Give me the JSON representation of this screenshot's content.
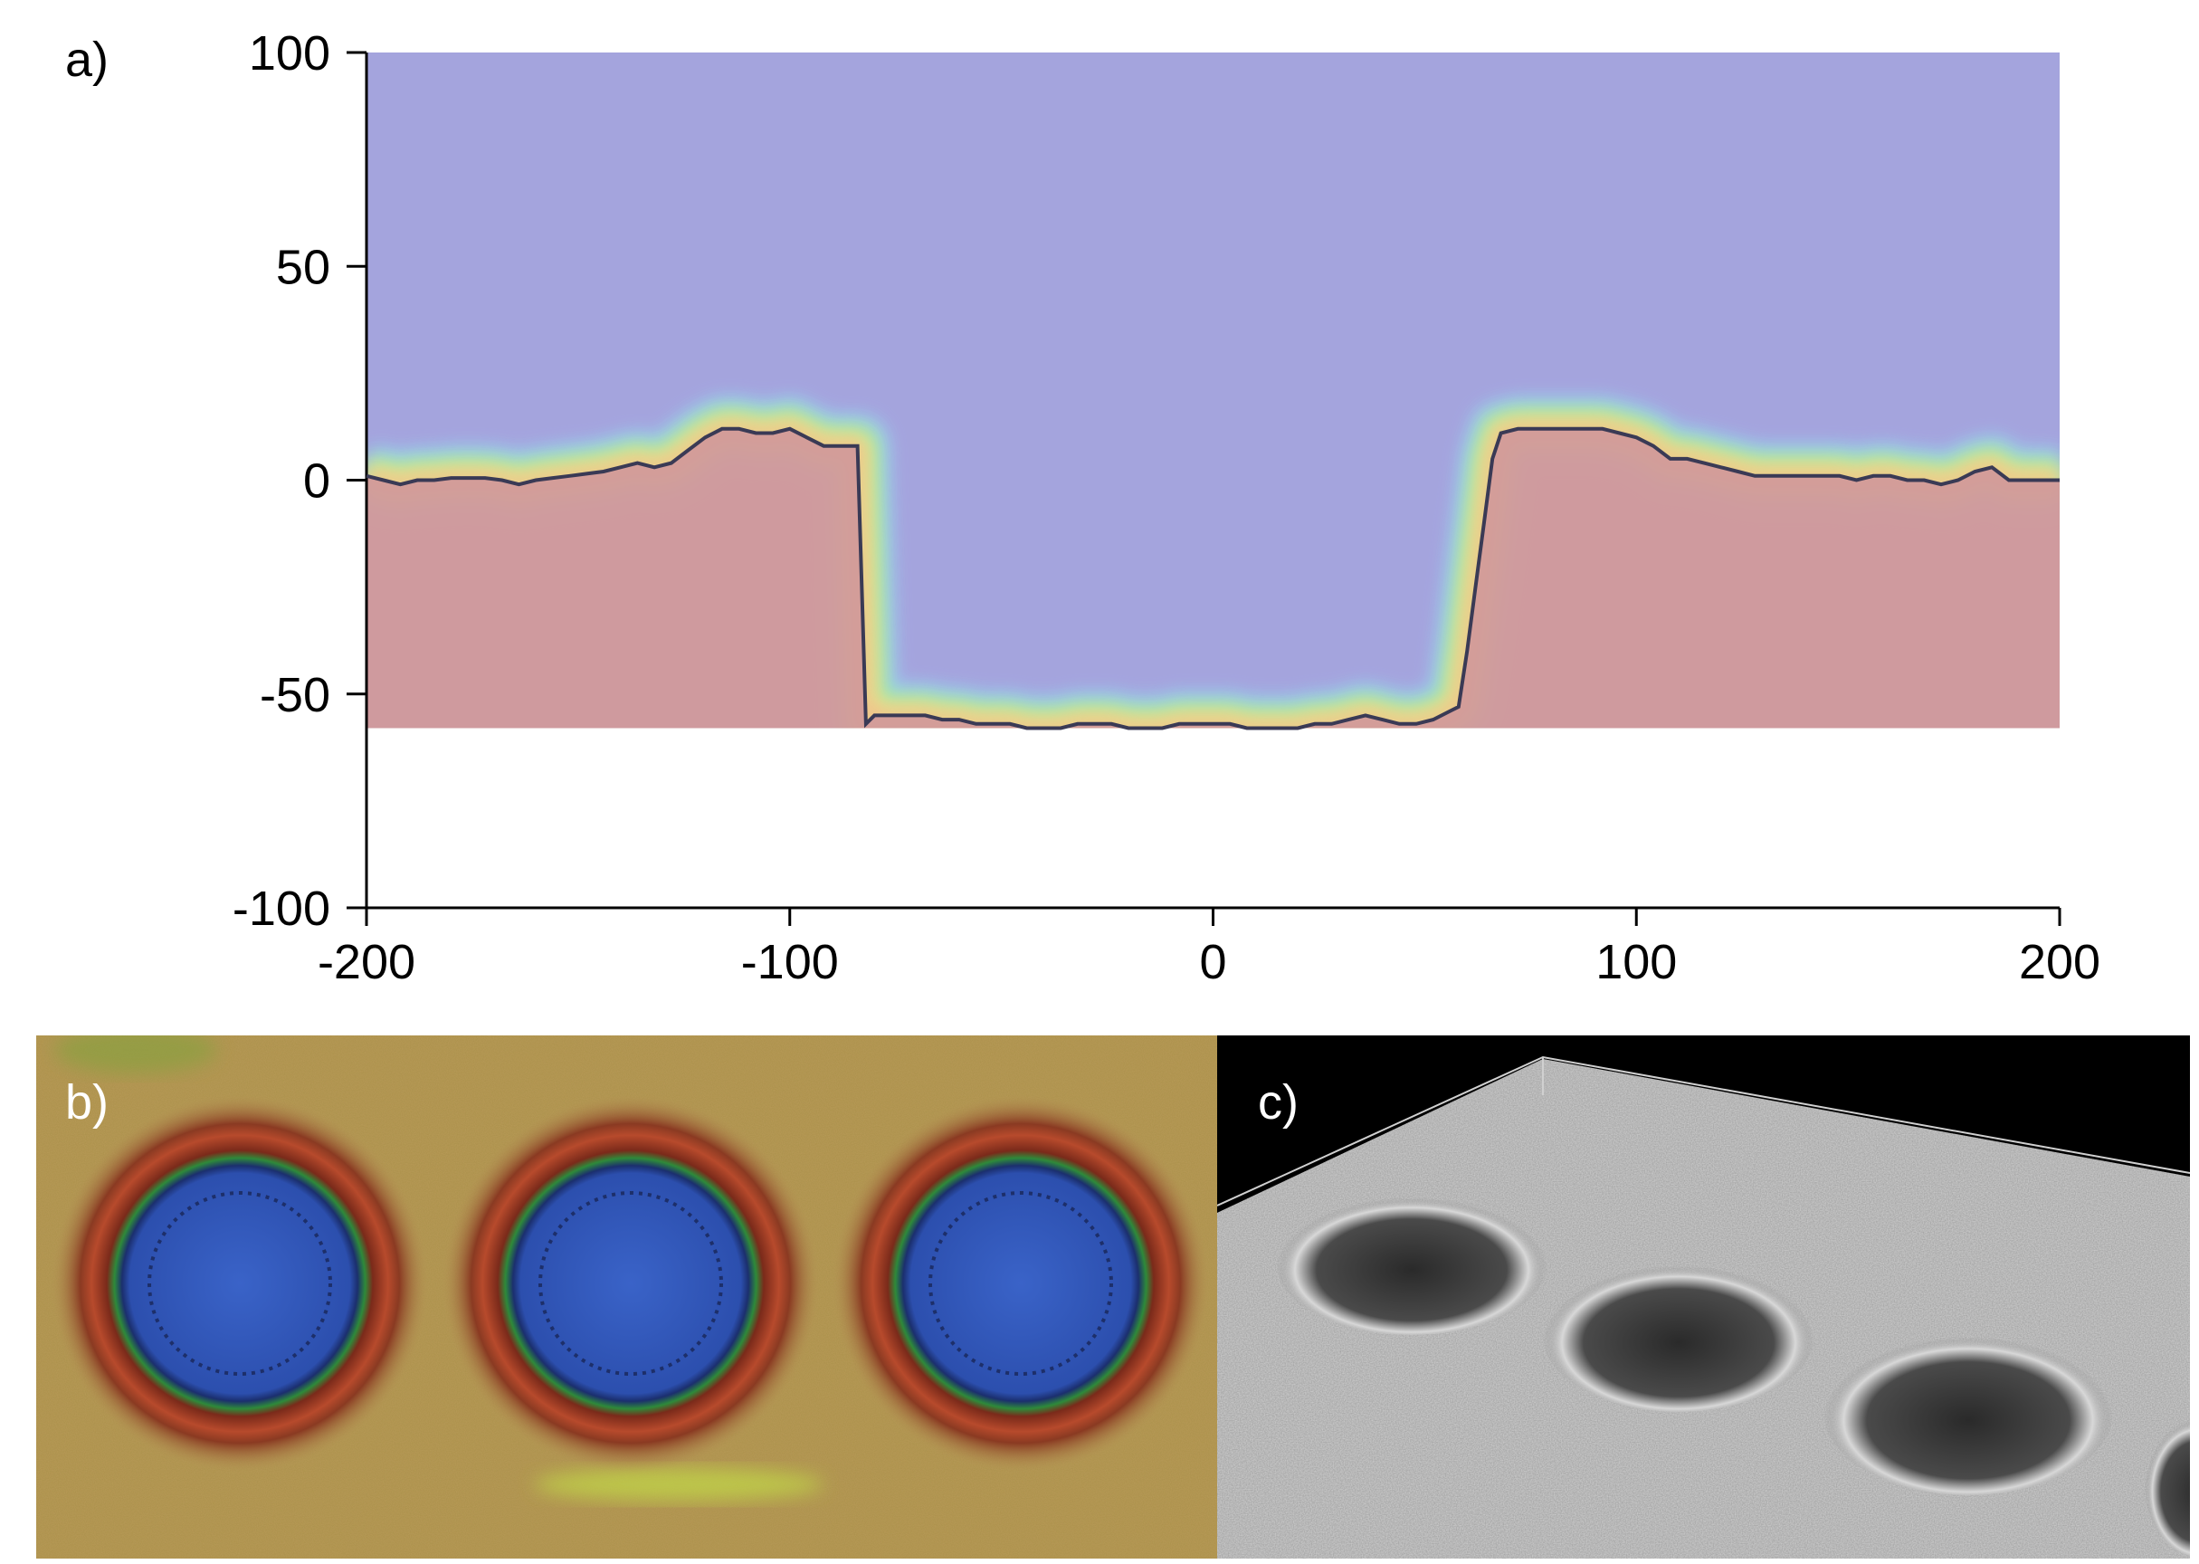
{
  "panels": {
    "a": "a)",
    "b": "b)",
    "c": "c)"
  },
  "colors": {
    "substrate": "#d29a9a",
    "void": "#a4a4dd",
    "profile_line": "#3a3a55",
    "panel_b_base": "#b89a58",
    "panel_b_hole": "#2f56b8",
    "panel_c_base": "#9c9c9c"
  },
  "chart_data": {
    "type": "line",
    "title": "",
    "xlabel": "",
    "ylabel": "",
    "xlim": [
      -200,
      200
    ],
    "ylim": [
      -100,
      100
    ],
    "xticks": [
      -200,
      -100,
      0,
      100,
      200
    ],
    "yticks": [
      100,
      50,
      0,
      -50,
      -100
    ],
    "xtick_labels": [
      "-200",
      "-100",
      "0",
      "100",
      "200"
    ],
    "ytick_labels": [
      "100",
      "50",
      "0",
      "-50",
      "-100"
    ],
    "grid": false,
    "background": "colormap (blue above profile, red below, rainbow band along rim)",
    "series": [
      {
        "x": [
          -200,
          -196,
          -192,
          -188,
          -184,
          -180,
          -176,
          -172,
          -168,
          -164,
          -160,
          -156,
          -152,
          -148,
          -144,
          -140,
          -136,
          -132,
          -128,
          -124,
          -120,
          -116,
          -112,
          -108,
          -104,
          -100,
          -96,
          -92,
          -88,
          -84,
          -82,
          -80,
          -76,
          -72,
          -68,
          -64,
          -60,
          -56,
          -52,
          -48,
          -44,
          -40,
          -36,
          -32,
          -28,
          -24,
          -20,
          -16,
          -12,
          -8,
          -4,
          0,
          4,
          8,
          12,
          16,
          20,
          24,
          28,
          32,
          36,
          40,
          44,
          48,
          52,
          56,
          58,
          60,
          62,
          64,
          66,
          68,
          72,
          76,
          80,
          84,
          88,
          92,
          96,
          100,
          104,
          108,
          112,
          116,
          120,
          124,
          128,
          132,
          136,
          140,
          144,
          148,
          152,
          156,
          160,
          164,
          168,
          172,
          176,
          180,
          184,
          188,
          192,
          196,
          200
        ],
        "y": [
          1,
          0,
          -1,
          0,
          0,
          0.5,
          0.5,
          0.5,
          0,
          -1,
          0,
          0.5,
          1,
          1.5,
          2,
          3,
          4,
          3,
          4,
          7,
          10,
          12,
          12,
          11,
          11,
          12,
          10,
          8,
          8,
          8,
          -57,
          -55,
          -55,
          -55,
          -55,
          -56,
          -56,
          -57,
          -57,
          -57,
          -58,
          -58,
          -58,
          -57,
          -57,
          -57,
          -58,
          -58,
          -58,
          -57,
          -57,
          -57,
          -57,
          -58,
          -58,
          -58,
          -58,
          -57,
          -57,
          -56,
          -55,
          -56,
          -57,
          -57,
          -56,
          -54,
          -53,
          -40,
          -25,
          -10,
          5,
          11,
          12,
          12,
          12,
          12,
          12,
          12,
          11,
          10,
          8,
          5,
          5,
          4,
          3,
          2,
          1,
          1,
          1,
          1,
          1,
          1,
          0,
          1,
          1,
          0,
          0,
          -1,
          0,
          2,
          3,
          0,
          0,
          0,
          0
        ]
      }
    ]
  }
}
